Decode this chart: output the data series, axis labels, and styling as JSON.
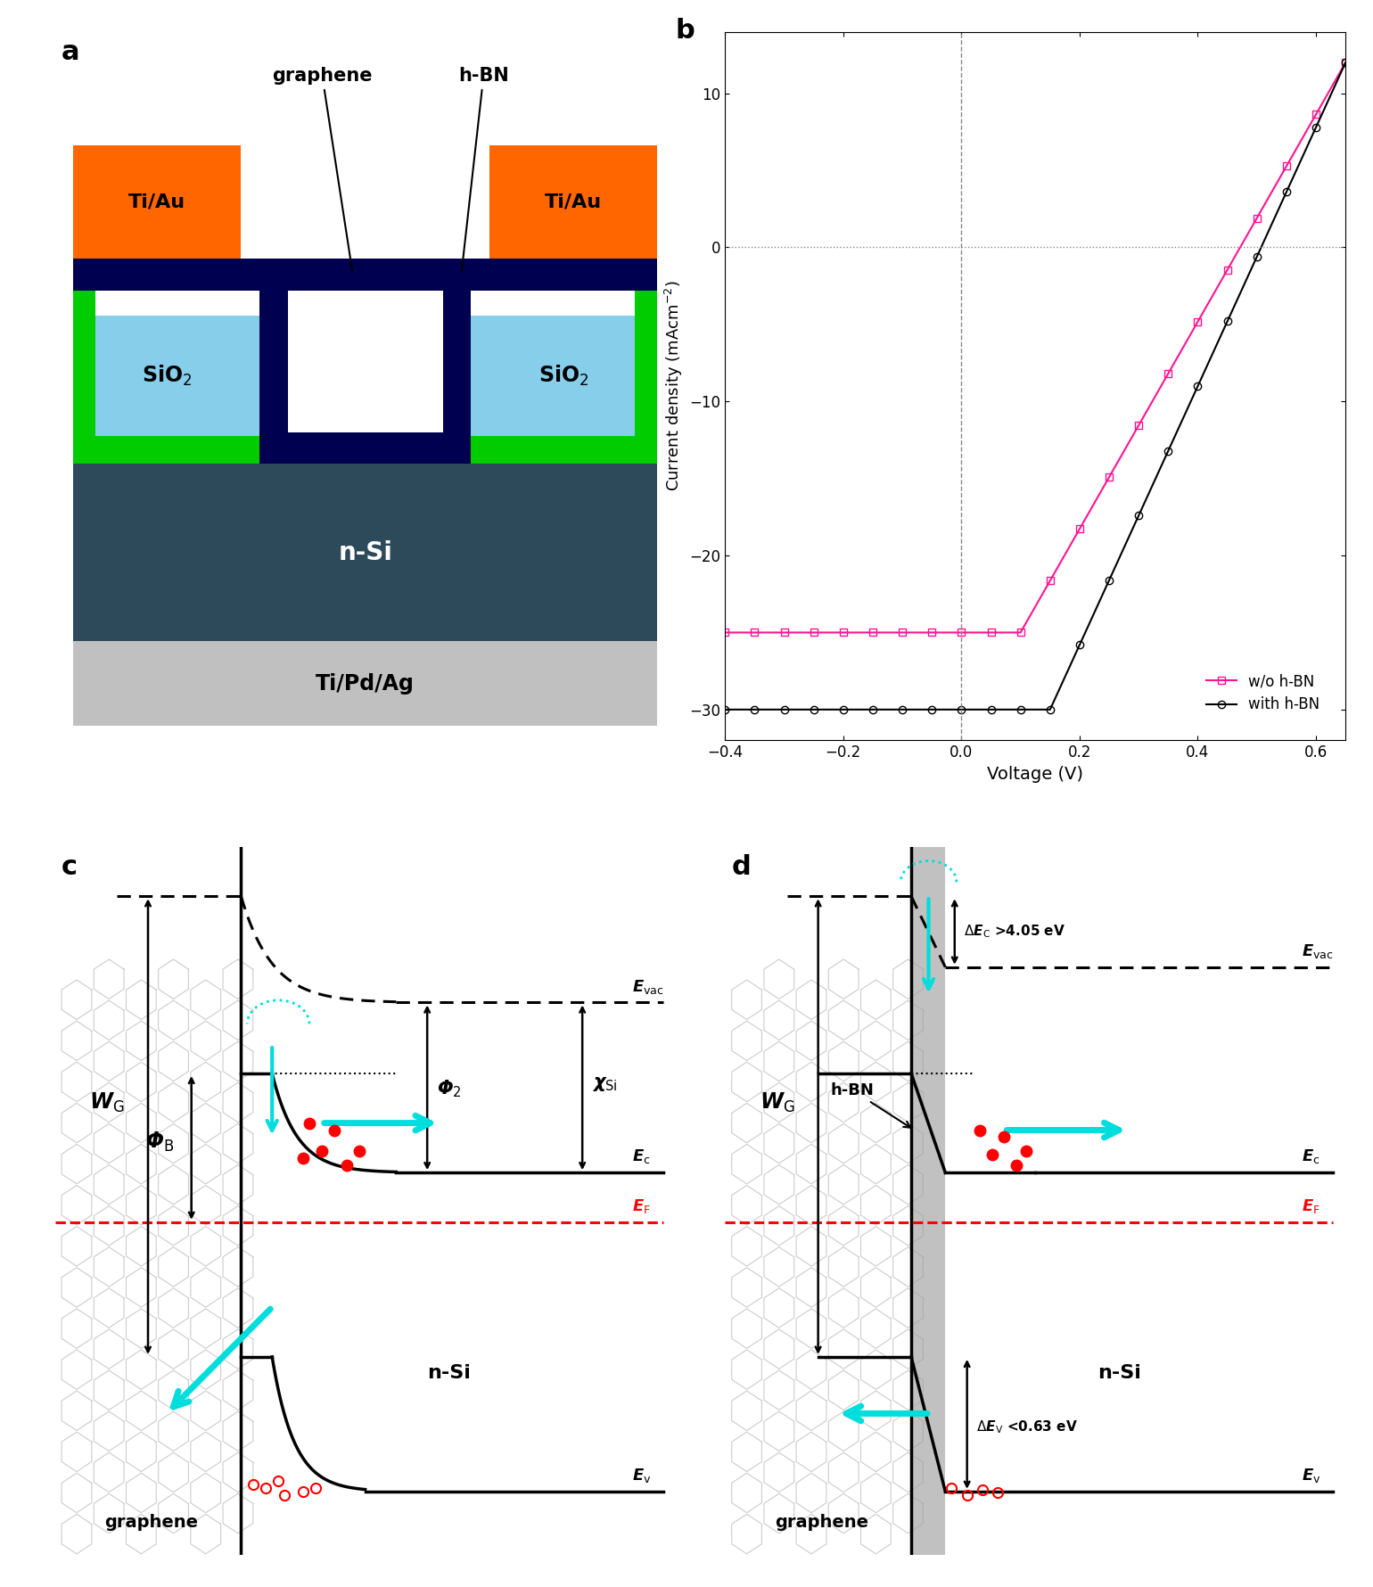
{
  "panel_b": {
    "xlabel": "Voltage (V)",
    "ylabel": "Current density (mAcm$^{-2}$)",
    "xlim": [
      -0.4,
      0.65
    ],
    "ylim": [
      -32,
      14
    ],
    "xticks": [
      -0.4,
      -0.2,
      0.0,
      0.2,
      0.4,
      0.6
    ],
    "yticks": [
      -30,
      -20,
      -10,
      0,
      10
    ],
    "color1": "#FF1493",
    "color2": "#000000"
  },
  "colors": {
    "nsi": "#2d4a5a",
    "tipdpag": "#c0c0c0",
    "sio2": "#87CEEB",
    "green": "#00CC00",
    "navy": "#000050",
    "tiau": "#FF6600",
    "hex_gray": "#cccccc",
    "red_dot": "#FF0000",
    "cyan": "#00FFFF"
  }
}
